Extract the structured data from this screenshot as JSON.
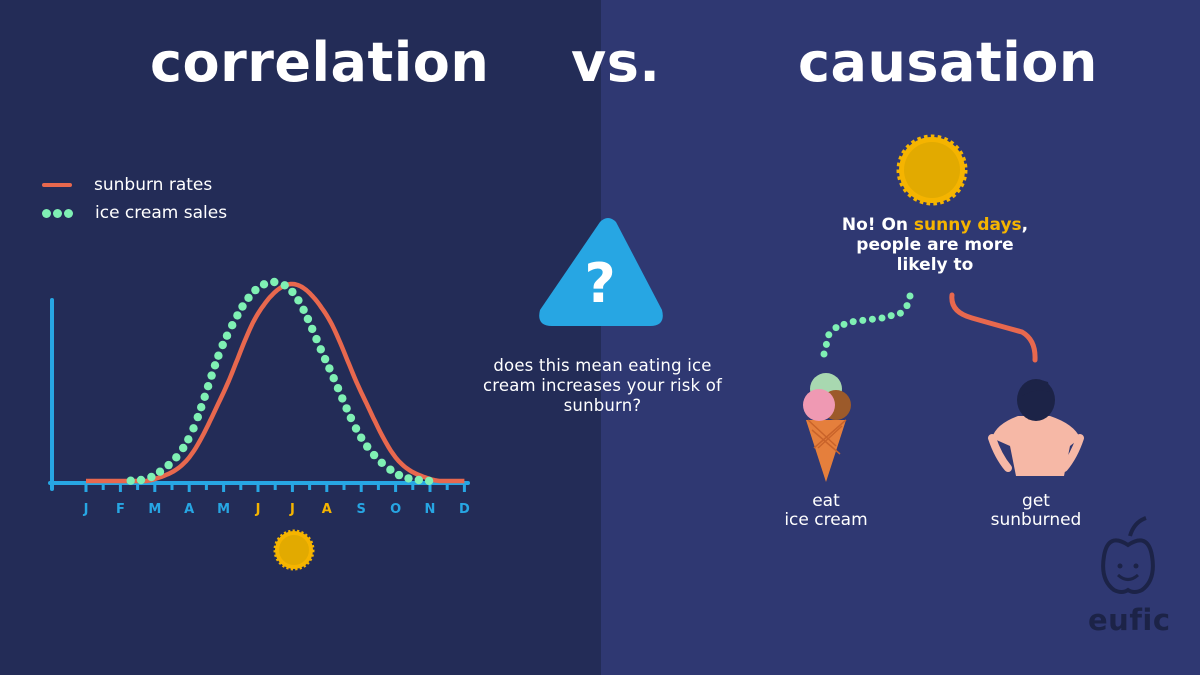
{
  "headings": {
    "left": "correlation",
    "middle": "vs.",
    "right": "causation"
  },
  "legend": {
    "sunburn": "sunburn rates",
    "icecream": "ice cream sales"
  },
  "chart_data": {
    "type": "line",
    "categories": [
      "J",
      "F",
      "M",
      "A",
      "M",
      "J",
      "J",
      "A",
      "S",
      "O",
      "N",
      "D"
    ],
    "highlighted_categories": [
      5,
      6,
      7
    ],
    "series": [
      {
        "name": "sunburn rates",
        "style": "solid-line",
        "color": "#e8684e",
        "values": [
          0,
          0,
          0.01,
          0.12,
          0.45,
          0.85,
          1.0,
          0.84,
          0.45,
          0.12,
          0.01,
          0
        ]
      },
      {
        "name": "ice cream sales",
        "style": "dotted-line",
        "color": "#7ff0b4",
        "values": [
          0,
          0,
          0.03,
          0.22,
          0.7,
          0.98,
          0.96,
          0.6,
          0.22,
          0.04,
          0,
          0
        ]
      }
    ],
    "y_axis_labels": "none",
    "grid": false,
    "colors": {
      "axis": "#27a6e3",
      "tick_label": "#27a6e3",
      "tick_label_highlight": "#f5b400"
    }
  },
  "question": "does this mean eating ice cream increases your risk of sunburn?",
  "answer": {
    "prefix": "No! On ",
    "highlight": "sunny days",
    "suffix": ",",
    "line2": "people are more",
    "line3": "likely to"
  },
  "outcomes": {
    "left": {
      "line1": "eat",
      "line2": "ice cream"
    },
    "right": {
      "line1": "get",
      "line2": "sunburned"
    }
  },
  "brand": "eufic",
  "icons": [
    "question-triangle-icon",
    "sun-icon",
    "ice-cream-cone-icon",
    "person-icon",
    "eufic-apple-logo-icon"
  ],
  "colors": {
    "bg_left": "#232c57",
    "bg_right": "#2f3872",
    "sun": "#f5b400",
    "accent_blue": "#27a6e3",
    "sunburn_red": "#e8684e",
    "icecream_green": "#7ff0b4"
  }
}
